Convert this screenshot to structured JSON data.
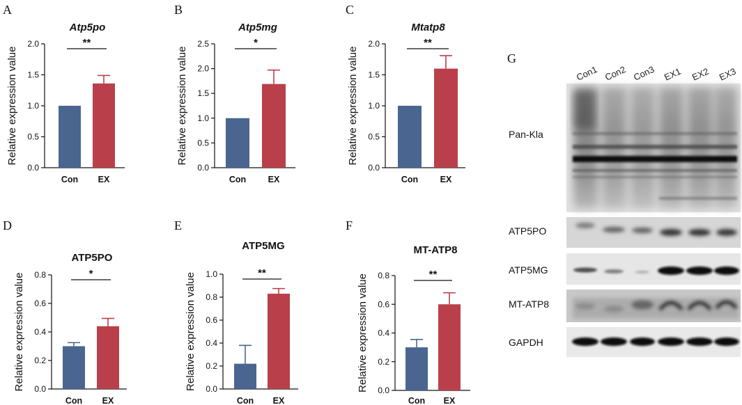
{
  "chart_data": [
    {
      "panel": "A",
      "type": "bar",
      "title": "Atp5po",
      "title_italic": true,
      "ylabel": "Relative expression value",
      "categories": [
        "Con",
        "EX"
      ],
      "values": [
        1.0,
        1.36
      ],
      "errors": [
        0,
        0.13
      ],
      "ylim": [
        0,
        2.0
      ],
      "yticks": [
        "0.0",
        "0.5",
        "1.0",
        "1.5",
        "2.0"
      ],
      "significance": "**"
    },
    {
      "panel": "B",
      "type": "bar",
      "title": "Atp5mg",
      "title_italic": true,
      "ylabel": "Relative expression value",
      "categories": [
        "Con",
        "EX"
      ],
      "values": [
        1.0,
        1.69
      ],
      "errors": [
        0,
        0.28
      ],
      "ylim": [
        0,
        2.5
      ],
      "yticks": [
        "0.0",
        "0.5",
        "1.0",
        "1.5",
        "2.0",
        "2.5"
      ],
      "significance": "*"
    },
    {
      "panel": "C",
      "type": "bar",
      "title": "Mtatp8",
      "title_italic": true,
      "ylabel": "Relative expression value",
      "categories": [
        "Con",
        "EX"
      ],
      "values": [
        1.0,
        1.6
      ],
      "errors": [
        0,
        0.21
      ],
      "ylim": [
        0,
        2.0
      ],
      "yticks": [
        "0.0",
        "0.5",
        "1.0",
        "1.5",
        "2.0"
      ],
      "significance": "**"
    },
    {
      "panel": "D",
      "type": "bar",
      "title": "ATP5PO",
      "title_italic": false,
      "ylabel": "Relative expression value",
      "categories": [
        "Con",
        "EX"
      ],
      "values": [
        0.3,
        0.44
      ],
      "errors": [
        0.025,
        0.055
      ],
      "ylim": [
        0,
        0.8
      ],
      "yticks": [
        "0.0",
        "0.2",
        "0.4",
        "0.6",
        "0.8"
      ],
      "significance": "*"
    },
    {
      "panel": "E",
      "type": "bar",
      "title": "ATP5MG",
      "title_italic": false,
      "ylabel": "Relative expression value",
      "categories": [
        "Con",
        "EX"
      ],
      "values": [
        0.22,
        0.83
      ],
      "errors": [
        0.16,
        0.045
      ],
      "ylim": [
        0,
        1.0
      ],
      "yticks": [
        "0.0",
        "0.2",
        "0.4",
        "0.6",
        "0.8",
        "1.0"
      ],
      "significance": "**"
    },
    {
      "panel": "F",
      "type": "bar",
      "title": "MT-ATP8",
      "title_italic": false,
      "ylabel": "Relative expression value",
      "categories": [
        "Con",
        "EX"
      ],
      "values": [
        0.3,
        0.6
      ],
      "errors": [
        0.055,
        0.08
      ],
      "ylim": [
        0,
        0.8
      ],
      "yticks": [
        "0.0",
        "0.2",
        "0.4",
        "0.6",
        "0.8"
      ],
      "significance": "**"
    }
  ],
  "colors": {
    "con": "#4a6590",
    "ex": "#b9404a",
    "axis": "#111111"
  },
  "blot": {
    "panel": "G",
    "lanes": [
      "Con1",
      "Con2",
      "Con3",
      "EX1",
      "EX2",
      "EX3"
    ],
    "rows": [
      "Pan-Kla",
      "ATP5PO",
      "ATP5MG",
      "MT-ATP8",
      "GAPDH"
    ]
  }
}
